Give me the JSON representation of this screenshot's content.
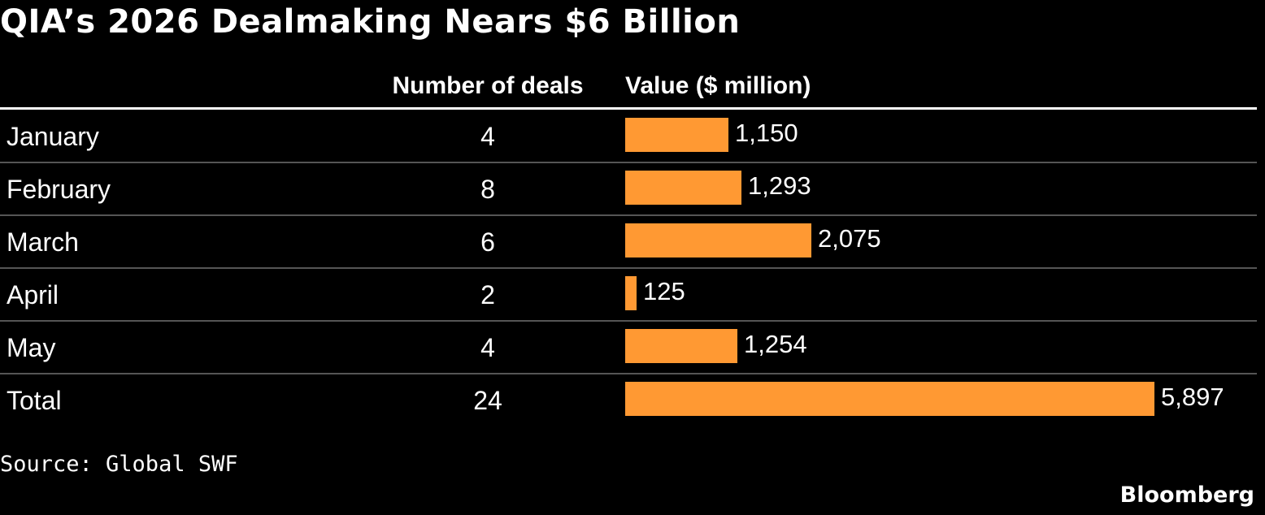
{
  "chart_data": {
    "type": "table",
    "title": "QIA’s 2026 Dealmaking Nears $6 Billion",
    "columns": [
      "Number of deals",
      "Value ($ million)"
    ],
    "rows": [
      {
        "month": "January",
        "deals": "4",
        "value": 1150,
        "value_label": "1,150"
      },
      {
        "month": "February",
        "deals": "8",
        "value": 1293,
        "value_label": "1,293"
      },
      {
        "month": "March",
        "deals": "6",
        "value": 2075,
        "value_label": "2,075"
      },
      {
        "month": "April",
        "deals": "2",
        "value": 125,
        "value_label": "125"
      },
      {
        "month": "May",
        "deals": "4",
        "value": 1254,
        "value_label": "1,254"
      },
      {
        "month": "Total",
        "deals": "24",
        "value": 5897,
        "value_label": "5,897"
      }
    ],
    "bar_color": "#ff9933",
    "source": "Source: Global SWF",
    "brand": "Bloomberg"
  }
}
